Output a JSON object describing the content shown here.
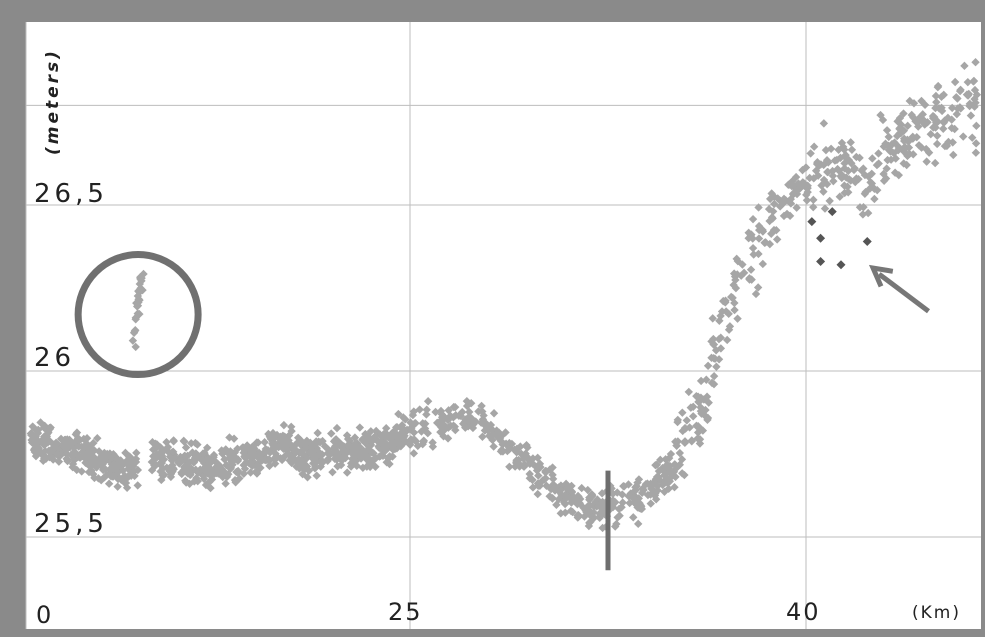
{
  "chart_data": {
    "type": "scatter",
    "title": "",
    "xlabel": "(Km)",
    "ylabel": "(meters)",
    "x_ticks": [
      "0",
      "25",
      "40"
    ],
    "y_ticks": [
      "25,5",
      "26",
      "26,5"
    ],
    "xlim": [
      0,
      46
    ],
    "ylim": [
      25.3,
      26.82
    ],
    "grid": true,
    "colors": {
      "points": "#a6a6a6",
      "outliers": "#555555",
      "frame": "#8a8a8a",
      "plot_bg": "#ffffff",
      "grid": "#bdbdbd",
      "marker": "#777777"
    },
    "trend": [
      [
        0,
        25.79
      ],
      [
        1,
        25.78
      ],
      [
        2,
        25.77
      ],
      [
        3,
        25.76
      ],
      [
        4,
        25.75
      ],
      [
        5,
        25.73
      ],
      [
        6,
        25.69
      ],
      [
        7,
        25.71
      ],
      [
        8,
        25.74
      ],
      [
        10,
        25.73
      ],
      [
        12,
        25.71
      ],
      [
        14,
        25.73
      ],
      [
        16,
        25.76
      ],
      [
        17,
        25.79
      ],
      [
        18,
        25.74
      ],
      [
        20,
        25.76
      ],
      [
        22,
        25.76
      ],
      [
        24,
        25.79
      ],
      [
        25,
        25.82
      ],
      [
        26,
        25.84
      ],
      [
        27,
        25.86
      ],
      [
        28,
        25.84
      ],
      [
        29,
        25.76
      ],
      [
        30,
        25.68
      ],
      [
        31,
        25.61
      ],
      [
        32,
        25.58
      ],
      [
        33,
        25.6
      ],
      [
        34,
        25.63
      ],
      [
        35,
        25.72
      ],
      [
        36,
        25.9
      ],
      [
        37,
        26.18
      ],
      [
        38,
        26.36
      ],
      [
        39,
        26.5
      ],
      [
        40,
        26.57
      ],
      [
        41,
        26.63
      ],
      [
        42,
        26.58
      ],
      [
        43,
        26.67
      ],
      [
        44,
        26.73
      ],
      [
        45,
        26.77
      ],
      [
        46,
        26.8
      ]
    ],
    "noise_m": 0.035,
    "gap_km": [
      7.3,
      8.1
    ],
    "circled_cluster": {
      "x_range_km": [
        7.0,
        7.6
      ],
      "y_range_m": [
        26.08,
        26.3
      ]
    },
    "outliers": [
      {
        "x": 40.2,
        "y": 26.45
      },
      {
        "x": 40.9,
        "y": 26.48
      },
      {
        "x": 40.5,
        "y": 26.4
      },
      {
        "x": 42.1,
        "y": 26.39
      },
      {
        "x": 40.5,
        "y": 26.33
      },
      {
        "x": 41.2,
        "y": 26.32
      }
    ],
    "annotations": {
      "circle": {
        "x": 7.3,
        "y": 26.17
      },
      "vertical_marker": {
        "x": 32.5,
        "y_from": 25.4,
        "y_to": 25.7
      },
      "arrow": {
        "from": [
          44.2,
          26.18
        ],
        "to": [
          42.3,
          26.31
        ]
      }
    }
  }
}
